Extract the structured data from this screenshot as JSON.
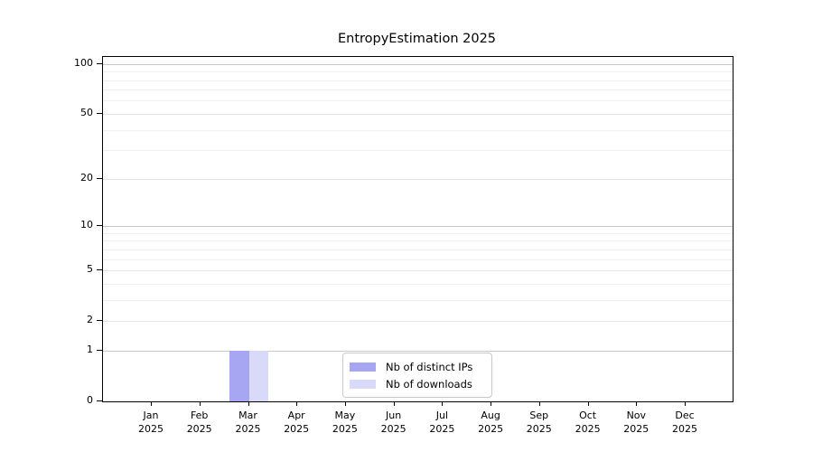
{
  "chart_data": {
    "type": "bar",
    "title": "EntropyEstimation 2025",
    "categories": [
      "Jan 2025",
      "Feb 2025",
      "Mar 2025",
      "Apr 2025",
      "May 2025",
      "Jun 2025",
      "Jul 2025",
      "Aug 2025",
      "Sep 2025",
      "Oct 2025",
      "Nov 2025",
      "Dec 2025"
    ],
    "x_tick_lines": [
      [
        "Jan",
        "2025"
      ],
      [
        "Feb",
        "2025"
      ],
      [
        "Mar",
        "2025"
      ],
      [
        "Apr",
        "2025"
      ],
      [
        "May",
        "2025"
      ],
      [
        "Jun",
        "2025"
      ],
      [
        "Jul",
        "2025"
      ],
      [
        "Aug",
        "2025"
      ],
      [
        "Sep",
        "2025"
      ],
      [
        "Oct",
        "2025"
      ],
      [
        "Nov",
        "2025"
      ],
      [
        "Dec",
        "2025"
      ]
    ],
    "series": [
      {
        "name": "Nb of distinct IPs",
        "color": "#a6a6f2",
        "values": [
          0,
          0,
          1,
          0,
          0,
          0,
          0,
          0,
          0,
          0,
          0,
          0
        ]
      },
      {
        "name": "Nb of downloads",
        "color": "#d9d9f9",
        "values": [
          0,
          0,
          1,
          0,
          0,
          0,
          0,
          0,
          0,
          0,
          0,
          0
        ]
      }
    ],
    "y_axis": {
      "scale": "log1p",
      "tick_values": [
        0,
        1,
        2,
        5,
        10,
        20,
        50,
        100
      ],
      "tick_labels": [
        "0",
        "1",
        "2",
        "5",
        "10",
        "20",
        "50",
        "100"
      ],
      "minor_gridline_values": [
        3,
        4,
        6,
        7,
        8,
        9,
        30,
        40,
        60,
        70,
        80,
        90
      ],
      "ylim": [
        0,
        110
      ],
      "grid": true
    },
    "xlabel": "",
    "ylabel": "",
    "legend_position": "lower center"
  },
  "colors": {
    "background": "#ffffff",
    "axis": "#000000",
    "major_grid": "#c9c9c9",
    "mid_grid": "#e3e3e3",
    "minor_grid": "#efefef",
    "legend_border": "#c9c9c9"
  }
}
